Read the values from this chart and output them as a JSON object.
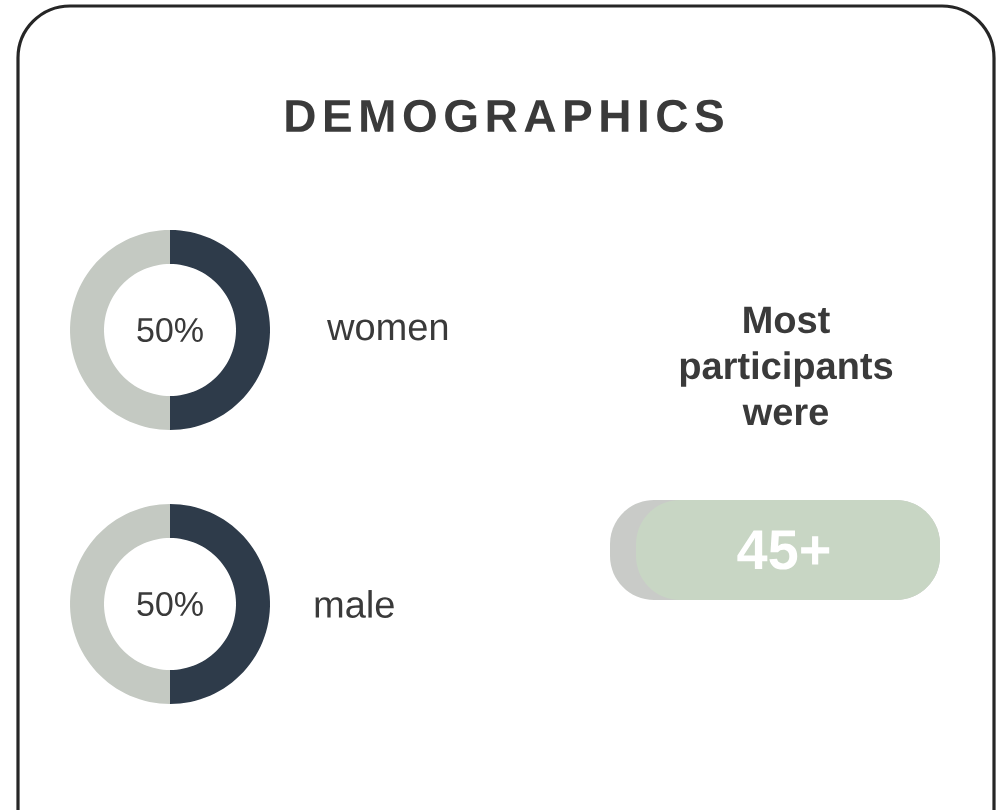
{
  "chart_data": [
    {
      "type": "donut",
      "title": "DEMOGRAPHICS",
      "categories": [
        "women",
        null
      ],
      "values": [
        50,
        50
      ],
      "colors": [
        "#2e3b4a",
        "#c4c9c2"
      ],
      "value_labels": [
        "50%",
        null
      ]
    },
    {
      "type": "donut",
      "categories": [
        "male",
        null
      ],
      "values": [
        50,
        50
      ],
      "colors": [
        "#2e3b4a",
        "#c4c9c2"
      ],
      "value_labels": [
        "50%",
        null
      ]
    },
    {
      "type": "other",
      "title": "Most participants were",
      "annotations": [
        "45+"
      ]
    }
  ]
}
